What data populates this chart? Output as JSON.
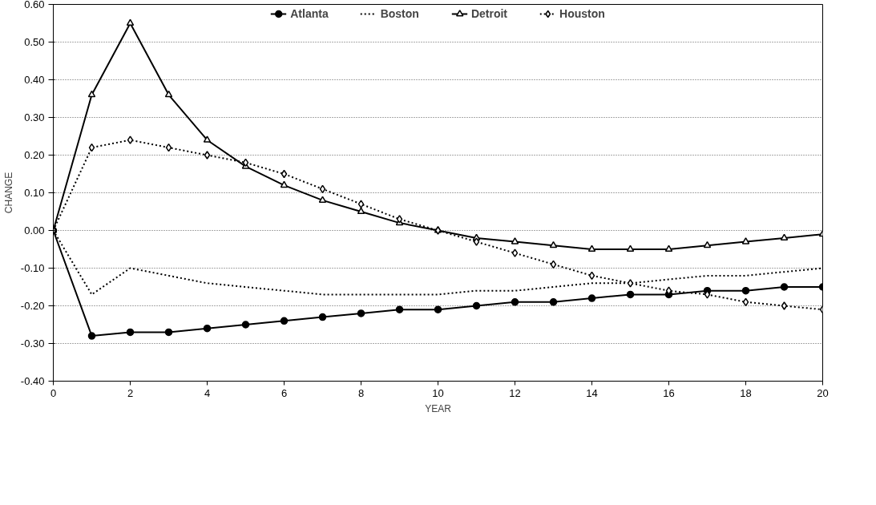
{
  "chart_data": {
    "type": "line",
    "xlabel": "YEAR",
    "ylabel": "CHANGE",
    "x": [
      0,
      1,
      2,
      3,
      4,
      5,
      6,
      7,
      8,
      9,
      10,
      11,
      12,
      13,
      14,
      15,
      16,
      17,
      18,
      19,
      20
    ],
    "xlim": [
      0,
      20
    ],
    "xticks": [
      0,
      2,
      4,
      6,
      8,
      10,
      12,
      14,
      16,
      18,
      20
    ],
    "ylim": [
      -0.4,
      0.6
    ],
    "yticks": [
      {
        "value": -0.4,
        "label": "-0.40"
      },
      {
        "value": -0.3,
        "label": "-0.30"
      },
      {
        "value": -0.2,
        "label": "-0.20"
      },
      {
        "value": -0.1,
        "label": "-0.10"
      },
      {
        "value": 0,
        "label": "0.00"
      },
      {
        "value": 0.1,
        "label": "0.10"
      },
      {
        "value": 0.2,
        "label": "0.20"
      },
      {
        "value": 0.3,
        "label": "0.30"
      },
      {
        "value": 0.4,
        "label": "0.40"
      },
      {
        "value": 0.5,
        "label": "0.50"
      },
      {
        "value": 0.6,
        "label": "0.60"
      }
    ],
    "grid": "y",
    "legend": "top",
    "series": [
      {
        "name": "Atlanta",
        "color": "#000000",
        "marker": "circle",
        "line_style": "solid",
        "values": [
          0,
          -0.28,
          -0.27,
          -0.27,
          -0.26,
          -0.25,
          -0.24,
          -0.23,
          -0.22,
          -0.21,
          -0.21,
          -0.2,
          -0.19,
          -0.19,
          -0.18,
          -0.17,
          -0.17,
          -0.16,
          -0.16,
          -0.15,
          -0.15
        ]
      },
      {
        "name": "Boston",
        "color": "#000000",
        "marker": "none",
        "line_style": "dotted",
        "values": [
          0,
          -0.17,
          -0.1,
          -0.12,
          -0.14,
          -0.15,
          -0.16,
          -0.17,
          -0.17,
          -0.17,
          -0.17,
          -0.16,
          -0.16,
          -0.15,
          -0.14,
          -0.14,
          -0.13,
          -0.12,
          -0.12,
          -0.11,
          -0.1
        ]
      },
      {
        "name": "Detroit",
        "color": "#000000",
        "marker": "triangle",
        "line_style": "solid",
        "values": [
          0,
          0.36,
          0.55,
          0.36,
          0.24,
          0.17,
          0.12,
          0.08,
          0.05,
          0.02,
          0,
          -0.02,
          -0.03,
          -0.04,
          -0.05,
          -0.05,
          -0.05,
          -0.04,
          -0.03,
          -0.02,
          -0.01
        ]
      },
      {
        "name": "Houston",
        "color": "#000000",
        "marker": "diamond",
        "line_style": "dotted",
        "values": [
          0,
          0.22,
          0.24,
          0.22,
          0.2,
          0.18,
          0.15,
          0.11,
          0.07,
          0.03,
          0,
          -0.03,
          -0.06,
          -0.09,
          -0.12,
          -0.14,
          -0.16,
          -0.17,
          -0.19,
          -0.2,
          -0.21
        ]
      }
    ]
  }
}
